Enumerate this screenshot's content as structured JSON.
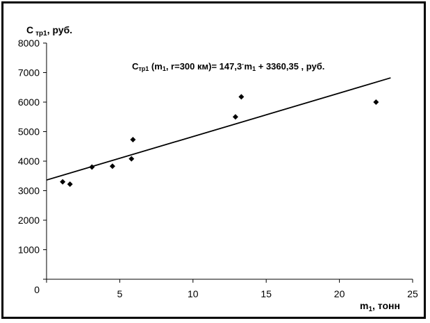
{
  "chart_data": {
    "type": "scatter",
    "ylabel_main": "C",
    "ylabel_sub": "тр1",
    "ylabel_tail": ", руб.",
    "xlabel_main": "m",
    "xlabel_sub": "1",
    "xlabel_tail": ", тонн",
    "xlim": [
      0,
      25
    ],
    "ylim": [
      0,
      8000
    ],
    "xticks": [
      0,
      5,
      10,
      15,
      20,
      25
    ],
    "yticks": [
      0,
      1000,
      2000,
      3000,
      4000,
      5000,
      6000,
      7000,
      8000
    ],
    "grid": false,
    "points": [
      {
        "x": 1.1,
        "y": 3300
      },
      {
        "x": 1.6,
        "y": 3220
      },
      {
        "x": 3.1,
        "y": 3800
      },
      {
        "x": 4.5,
        "y": 3830
      },
      {
        "x": 5.8,
        "y": 4080
      },
      {
        "x": 5.9,
        "y": 4730
      },
      {
        "x": 12.9,
        "y": 5500
      },
      {
        "x": 13.3,
        "y": 6180
      },
      {
        "x": 22.5,
        "y": 6000
      }
    ],
    "trendline": {
      "slope": 147.3,
      "intercept": 3360.35,
      "x_range": [
        0,
        23.5
      ]
    },
    "equation": {
      "lead": "C",
      "lead_sub": "тр1",
      "args_a": " (m",
      "args_a_sub": "1",
      "args_b": ", r=300 км)= 147,3",
      "dot": "·",
      "mid": "m",
      "mid_sub": "1",
      "tail": " + 3360,35 , руб."
    }
  }
}
